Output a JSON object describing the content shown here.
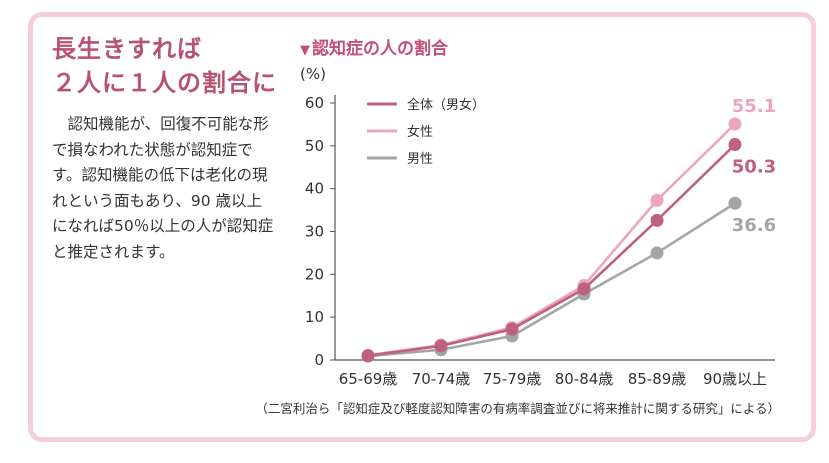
{
  "headline": {
    "line1": "長生きすれば",
    "line2": "２人に１人の割合に"
  },
  "body_text": "認知機能が、回復不可能な形で損なわれた状態が認知症です。認知機能の低下は老化の現れという面もあり、90 歳以上になれば50％以上の人が認知症と推定されます。",
  "chart_title_marker": "▼",
  "chart_title": "認知症の人の割合",
  "source_note": "（二宮利治ら「認知症及び軽度認知障害の有病率調査並びに将来推計に関する研究」による）",
  "chart_data": {
    "type": "line",
    "title": "認知症の人の割合",
    "ylabel": "(%)",
    "xlabel": "",
    "ylim": [
      0,
      60
    ],
    "yticks": [
      "0",
      "10",
      "20",
      "30",
      "40",
      "50",
      "60"
    ],
    "categories": [
      "65-69歳",
      "70-74歳",
      "75-79歳",
      "80-84歳",
      "85-89歳",
      "90歳以上"
    ],
    "legend_position": "top-left",
    "grid": false,
    "series": [
      {
        "name": "全体（男女）",
        "color": "#c0607f",
        "values": [
          1.0,
          3.3,
          7.2,
          16.6,
          32.6,
          50.3
        ],
        "end_label": "50.3"
      },
      {
        "name": "女性",
        "color": "#eea4bd",
        "values": [
          1.1,
          3.5,
          7.6,
          17.4,
          37.3,
          55.1
        ],
        "end_label": "55.1"
      },
      {
        "name": "男性",
        "color": "#a5a5a5",
        "values": [
          0.9,
          2.4,
          5.6,
          15.4,
          25.0,
          36.6
        ],
        "end_label": "36.6"
      }
    ]
  }
}
